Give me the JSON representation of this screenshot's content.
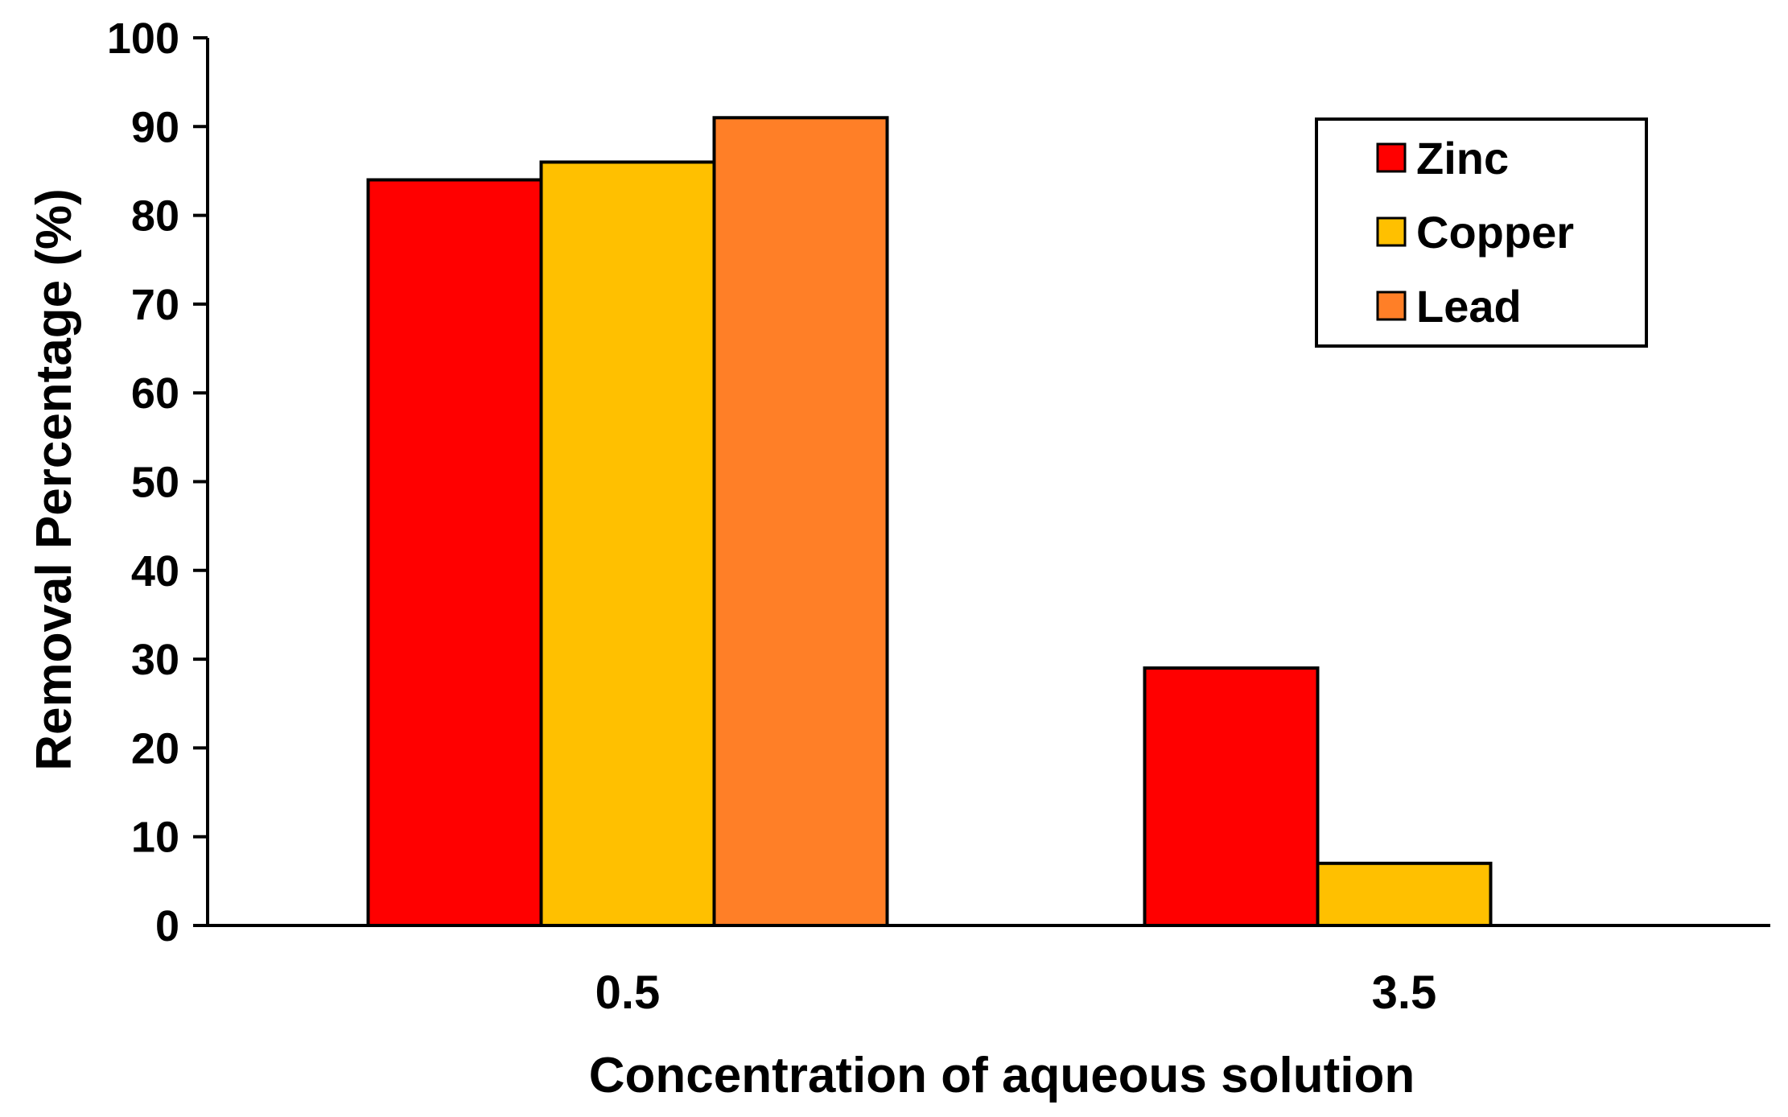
{
  "chart_data": {
    "type": "bar",
    "categories": [
      "0.5",
      "3.5"
    ],
    "series": [
      {
        "name": "Zinc",
        "values": [
          84,
          29
        ],
        "color": "#FF0000"
      },
      {
        "name": "Copper",
        "values": [
          86,
          7
        ],
        "color": "#FFC000"
      },
      {
        "name": "Lead",
        "values": [
          91,
          0
        ],
        "color": "#FF7F27"
      }
    ],
    "xlabel": "Concentration of aqueous solution",
    "ylabel": "Removal Percentage (%)",
    "ylim": [
      0,
      100
    ],
    "yticks": [
      "0",
      "10",
      "20",
      "30",
      "40",
      "50",
      "60",
      "70",
      "80",
      "90",
      "100"
    ],
    "grid": false,
    "legend_position": "top-right"
  }
}
